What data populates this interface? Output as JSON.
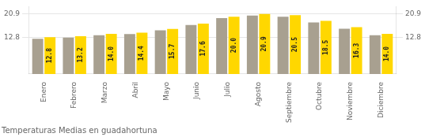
{
  "chart_data": {
    "type": "bar",
    "title": "Temperaturas Medias en guadahortuna",
    "categories": [
      "Enero",
      "Febrero",
      "Marzo",
      "Abril",
      "Mayo",
      "Junio",
      "Julio",
      "Agosto",
      "Septiembre",
      "Octubre",
      "Noviembre",
      "Diciembre"
    ],
    "series": [
      {
        "color": "#A8A090",
        "values": [
          12.3,
          12.7,
          13.5,
          13.9,
          15.2,
          17.1,
          19.5,
          20.4,
          20.0,
          18.0,
          15.8,
          13.5
        ]
      },
      {
        "color": "#FFD700",
        "values": [
          12.8,
          13.2,
          14.0,
          14.4,
          15.7,
          17.6,
          20.0,
          20.9,
          20.5,
          18.5,
          16.3,
          14.0
        ],
        "data_labels": true,
        "value_labels": [
          "12.8",
          "13.2",
          "14.0",
          "14.4",
          "15.7",
          "17.6",
          "20.0",
          "20.9",
          "20.5",
          "18.5",
          "16.3",
          "14.0"
        ]
      }
    ],
    "ylim": [
      0,
      23.5
    ],
    "yticks": [
      12.8,
      20.9
    ],
    "y2lim": [
      0,
      23.5
    ],
    "y2ticks": [
      12.8,
      20.9
    ],
    "grid": true
  }
}
